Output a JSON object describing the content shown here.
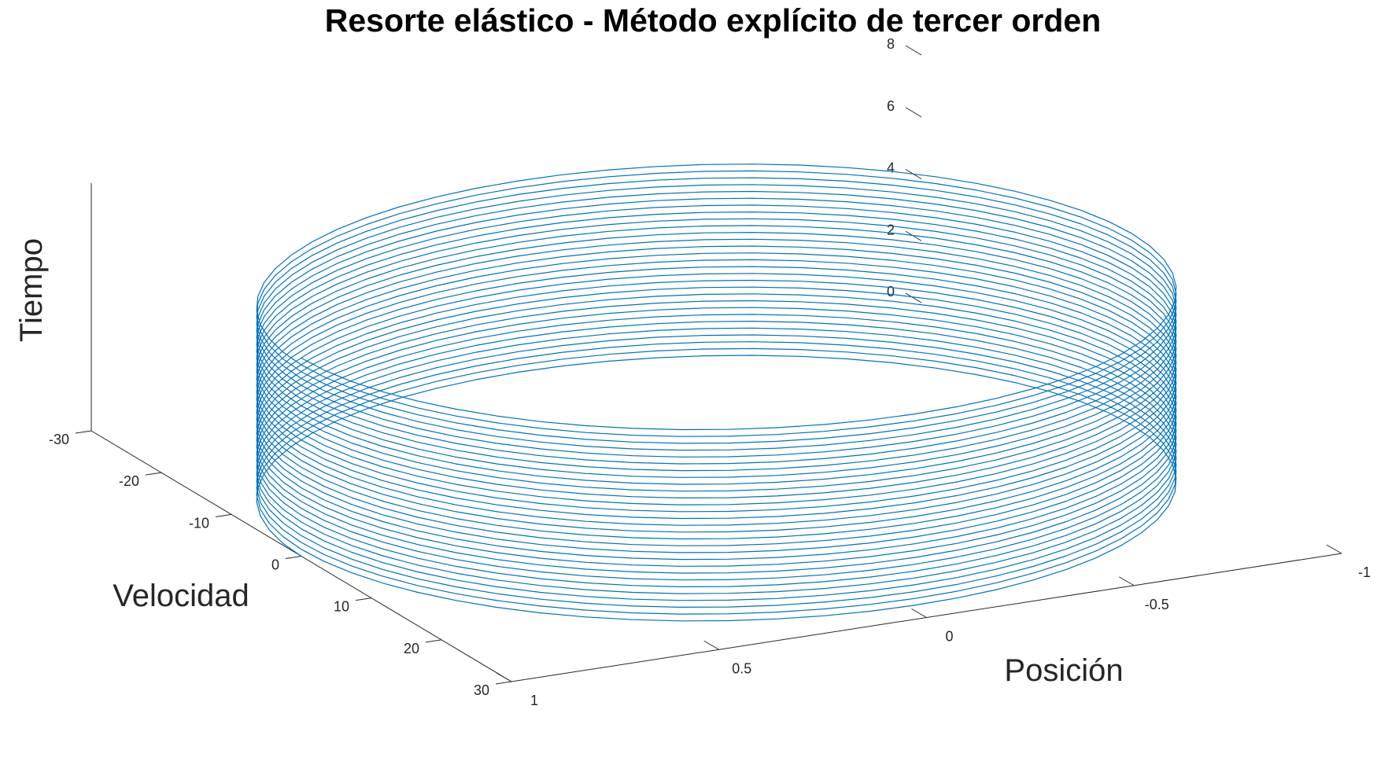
{
  "chart_data": {
    "type": "line",
    "projection": "3d",
    "title": "Resorte elástico - Método explícito de tercer orden",
    "xlabel": "Posición",
    "ylabel": "Velocidad",
    "zlabel": "Tiempo",
    "xlim": [
      -1,
      1
    ],
    "ylim": [
      -30,
      30
    ],
    "zlim": [
      0,
      8
    ],
    "x_ticks": [
      "-1",
      "-0.5",
      "0",
      "0.5",
      "1"
    ],
    "y_ticks": [
      "-30",
      "-20",
      "-10",
      "0",
      "10",
      "20",
      "30"
    ],
    "z_ticks": [
      "0",
      "2",
      "4",
      "6",
      "8"
    ],
    "series": [
      {
        "parametric": "x = cos(w t), y = -w sin(w t), z = t",
        "amplitude_position": 1,
        "amplitude_velocity": 28.3,
        "t_range": [
          0,
          6.4
        ],
        "turns": 29,
        "color": "#0072BD"
      }
    ],
    "grid": false,
    "legend": "none"
  }
}
